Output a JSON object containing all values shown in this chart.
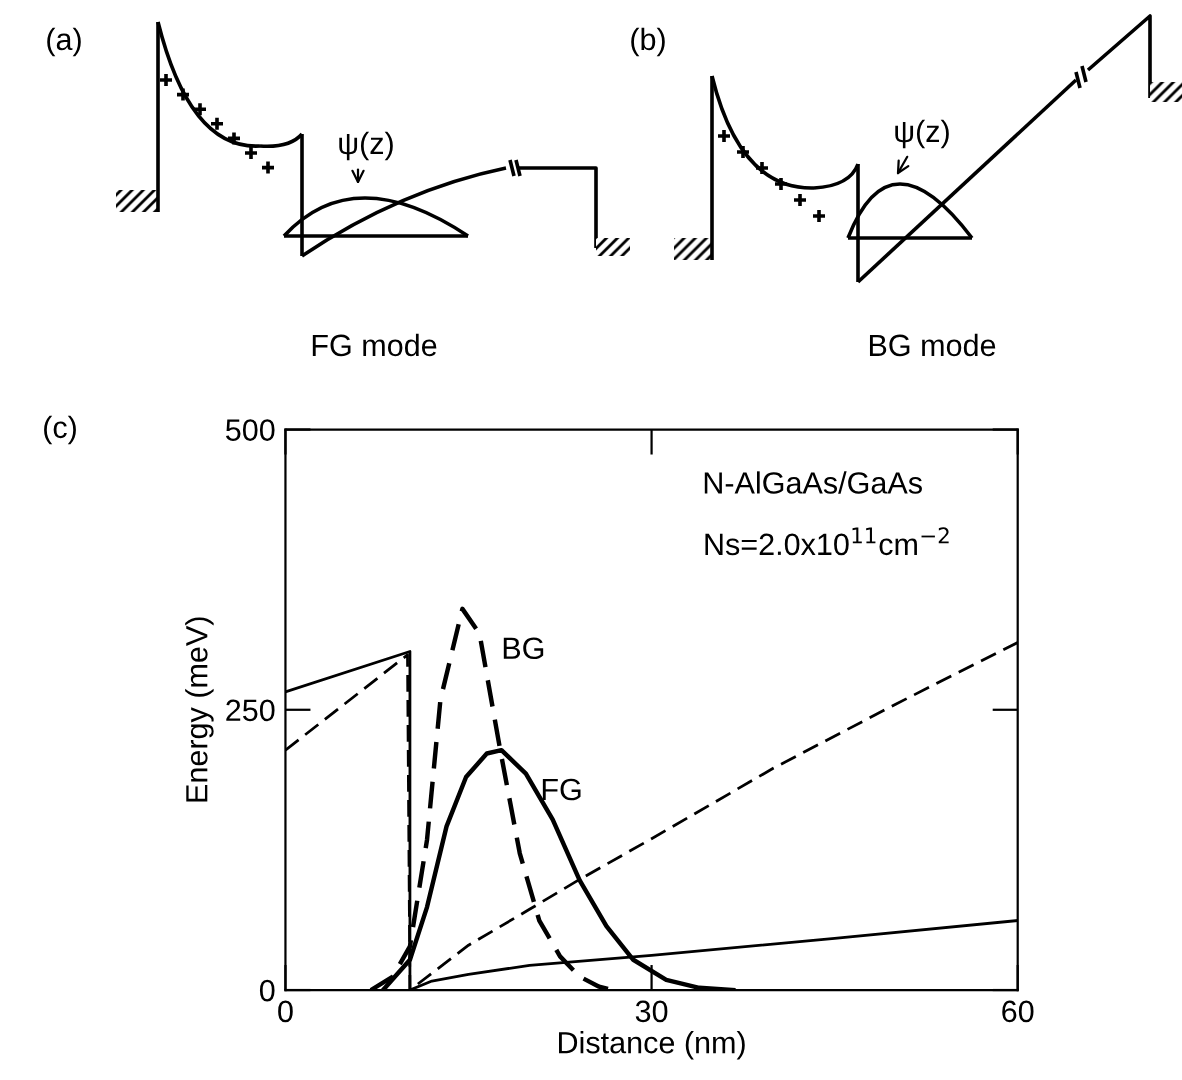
{
  "chart_data": {
    "type": "line",
    "xlabel": "Distance (nm)",
    "ylabel": "Energy (meV)",
    "annotations": [
      "(a)",
      "ψ(z)",
      "FG mode",
      "(b)",
      "ψ(z)",
      "BG mode",
      "(c)",
      "N-AlGaAs/GaAs",
      "Ns=2.0x10$^{11}$cm$^{−2}$"
    ],
    "series": [
      {
        "color": "#000000",
        "line_style": "solid",
        "x": [
          0,
          10.2,
          10.2,
          12,
          15,
          20,
          30,
          45,
          60
        ],
        "values": [
          266,
          302,
          0,
          8,
          14,
          22,
          31,
          46,
          62
        ]
      },
      {
        "color": "#000000",
        "line_style": "dashed",
        "x": [
          0,
          10.0,
          10.2,
          15,
          20,
          24,
          30,
          40,
          50,
          60
        ],
        "values": [
          214,
          299,
          0,
          40,
          72,
          98,
          135,
          198,
          255,
          310
        ]
      },
      {
        "name": "BG",
        "color": "#000000",
        "line_style": "dashed",
        "x": [
          7,
          8.8,
          10.2,
          11.6,
          12.7,
          14.5,
          15.9,
          17.6,
          19.2,
          20.8,
          22.5,
          24.1,
          25.7,
          26.8
        ],
        "values": [
          0,
          12,
          39,
          134,
          259,
          340,
          318,
          214,
          122,
          62,
          30,
          12,
          3,
          0
        ]
      },
      {
        "name": "FG",
        "color": "#000000",
        "line_style": "solid",
        "x": [
          8,
          10.2,
          11.6,
          13.2,
          14.8,
          16.5,
          17.7,
          19.7,
          21.9,
          24.1,
          26.3,
          28.5,
          31.2,
          33.9,
          36.7
        ],
        "values": [
          0,
          27,
          74,
          146,
          190,
          211,
          214,
          193,
          152,
          98,
          57,
          27,
          9,
          2,
          0
        ]
      }
    ],
    "xlim": [
      0,
      60
    ],
    "ylim": [
      0,
      500
    ],
    "xticks": [
      0,
      30,
      60
    ],
    "yticks": [
      0,
      250,
      500
    ],
    "legend": false
  }
}
